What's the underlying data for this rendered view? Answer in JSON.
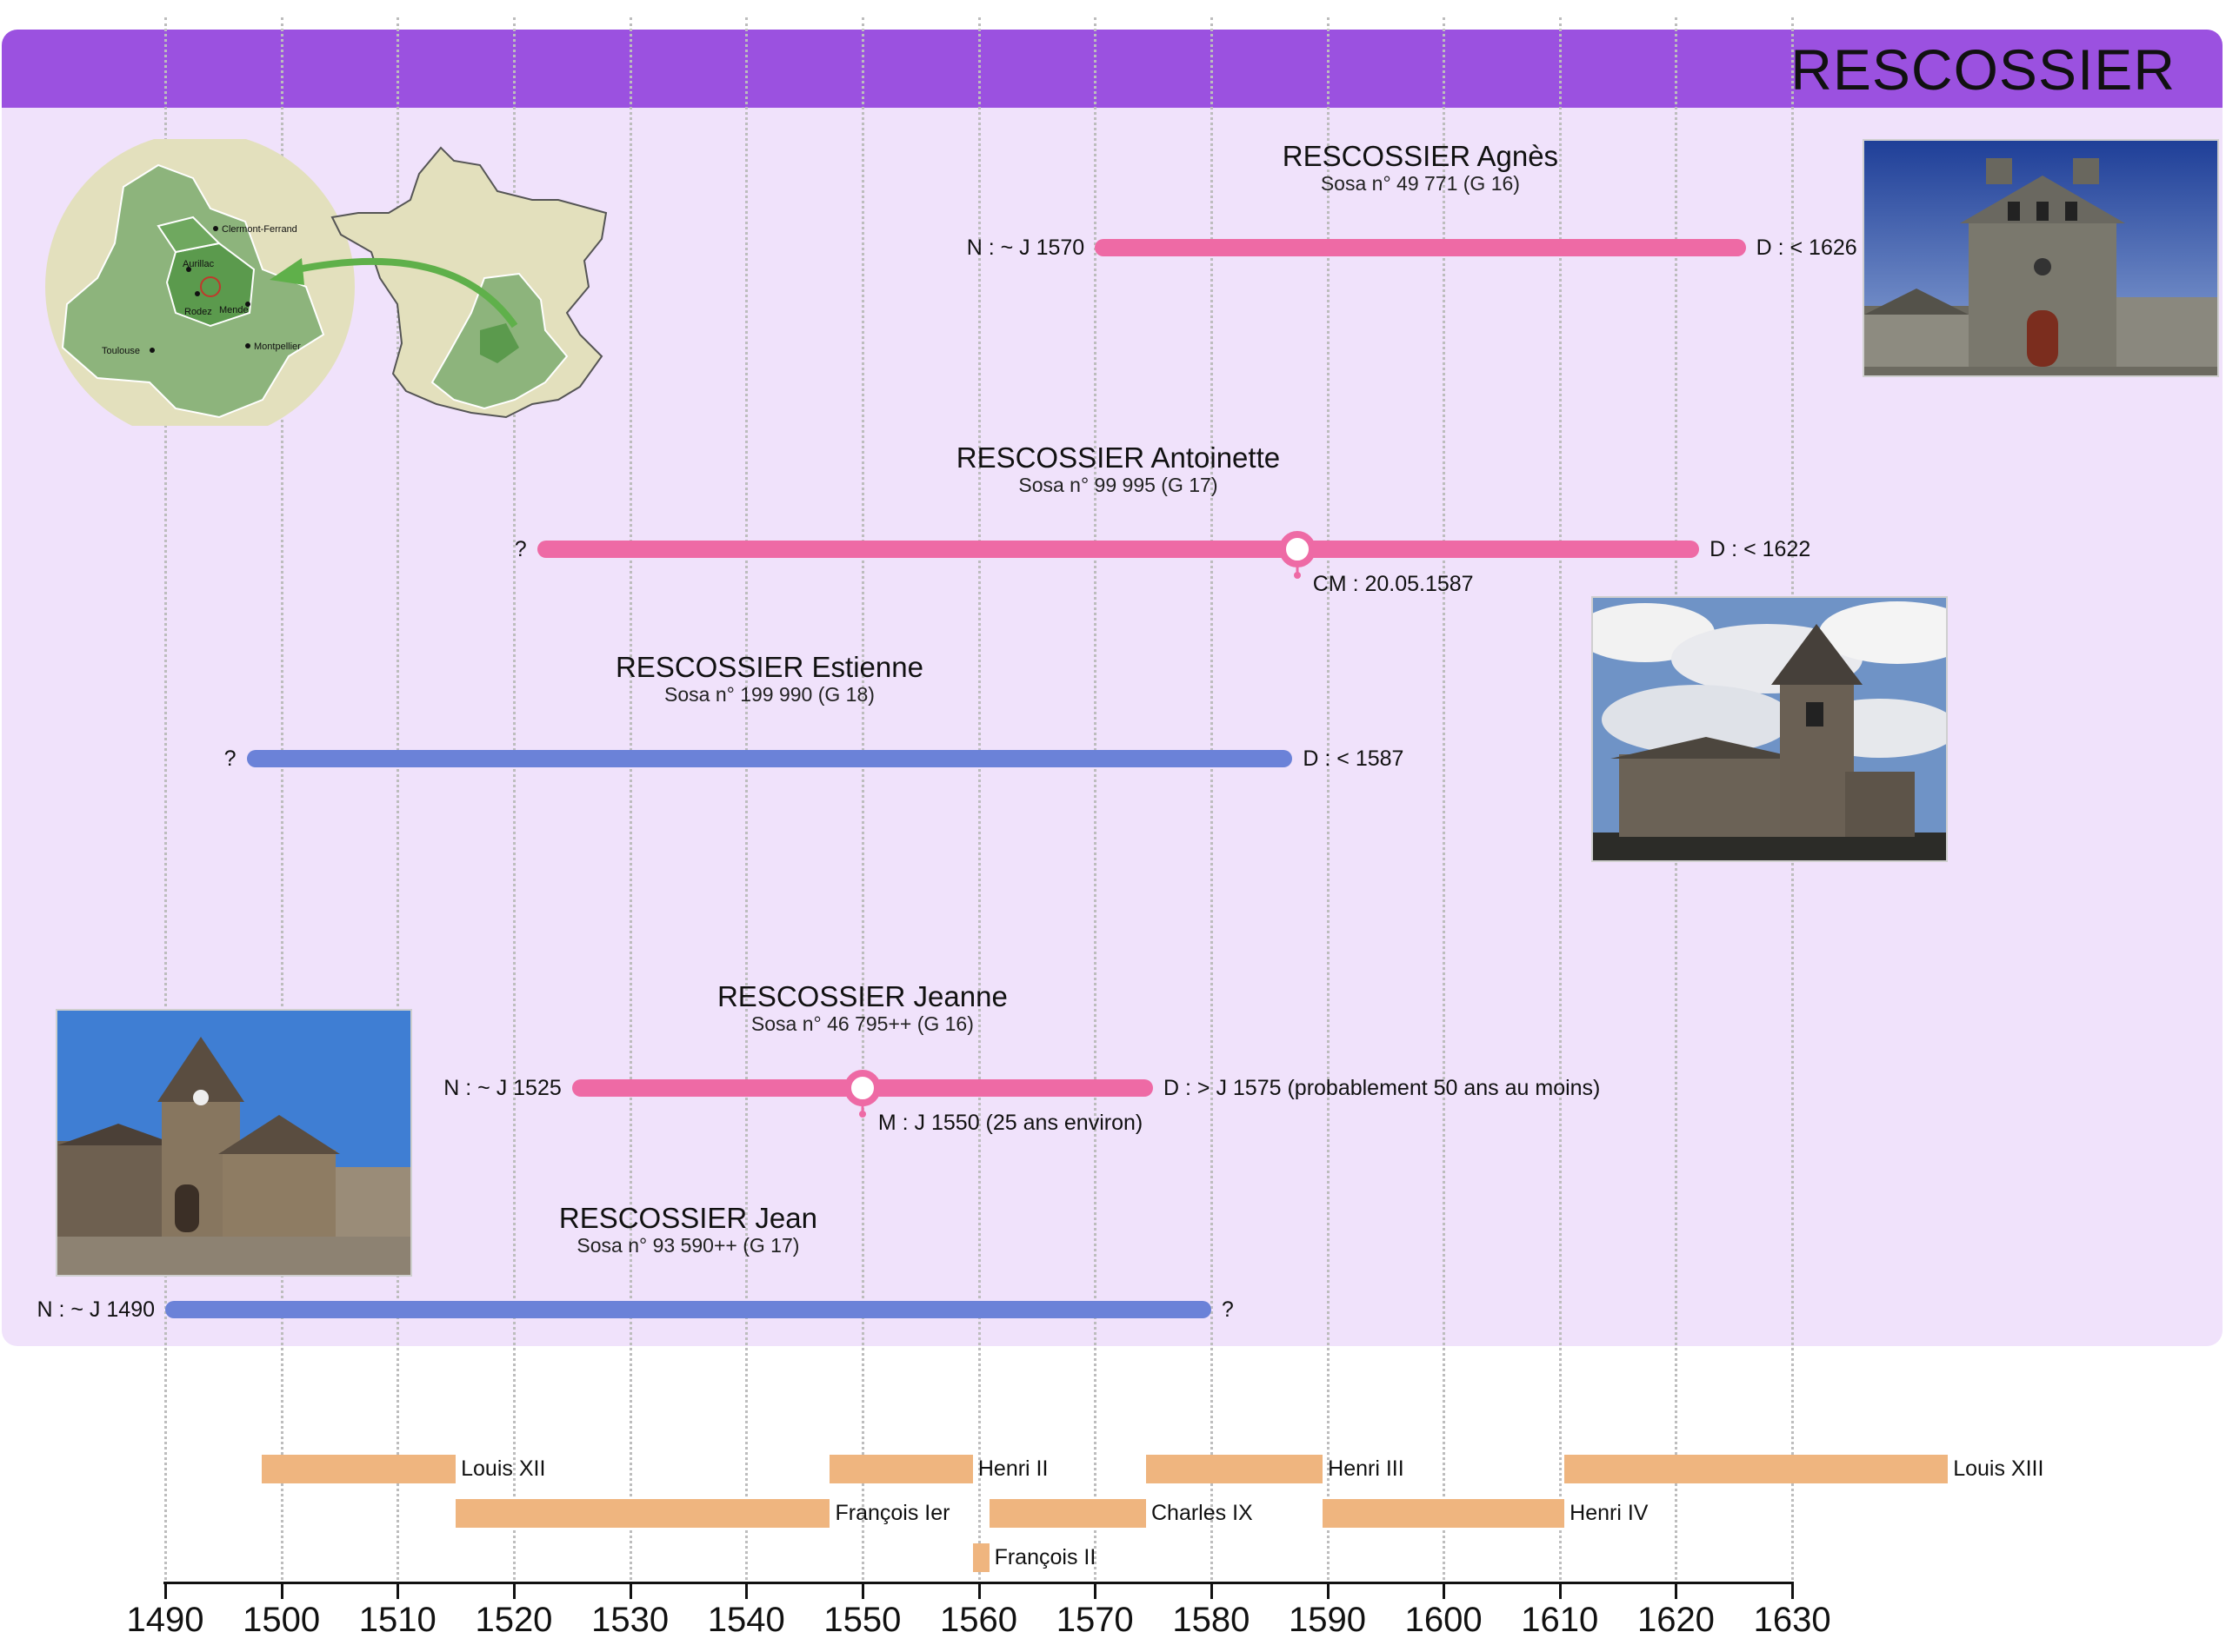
{
  "header": {
    "title": "RESCOSSIER"
  },
  "persons": [
    {
      "id": "agnes",
      "name": "RESCOSSIER Agnès",
      "sosa": "Sosa n° 49 771 (G 16)",
      "sex": "female",
      "birth_label": "N : ~ J 1570",
      "death_label": "D : < 1626",
      "start_year": 1570,
      "end_year": 1626
    },
    {
      "id": "antoinette",
      "name": "RESCOSSIER Antoinette",
      "sosa": "Sosa n° 99 995 (G 17)",
      "sex": "female",
      "birth_label": "?",
      "death_label": "D : < 1622",
      "start_year": 1522,
      "end_year": 1622,
      "event": {
        "label": "CM : 20.05.1587",
        "year": 1587.4
      }
    },
    {
      "id": "estienne",
      "name": "RESCOSSIER Estienne",
      "sosa": "Sosa n° 199 990 (G 18)",
      "sex": "male",
      "birth_label": "?",
      "death_label": "D : < 1587",
      "start_year": 1497,
      "end_year": 1587
    },
    {
      "id": "jeanne",
      "name": "RESCOSSIER Jeanne",
      "sosa": "Sosa n° 46 795++ (G 16)",
      "sex": "female",
      "birth_label": "N : ~ J 1525",
      "death_label": "D : > J 1575 (probablement 50 ans au moins)",
      "start_year": 1525,
      "end_year": 1575,
      "event": {
        "label": "M : J 1550 (25 ans environ)",
        "year": 1550
      }
    },
    {
      "id": "jean",
      "name": "RESCOSSIER Jean",
      "sosa": "Sosa n° 93 590++ (G 17)",
      "sex": "male",
      "birth_label": "N : ~ J 1490",
      "death_label": "?",
      "start_year": 1490,
      "end_year": 1580
    }
  ],
  "kings": [
    {
      "name": "Louis XII",
      "start": 1498.3,
      "end": 1515,
      "row": 0
    },
    {
      "name": "François Ier",
      "start": 1515,
      "end": 1547.2,
      "row": 1
    },
    {
      "name": "Henri II",
      "start": 1547.2,
      "end": 1559.5,
      "row": 0
    },
    {
      "name": "François II",
      "start": 1559.5,
      "end": 1560.9,
      "row": 2
    },
    {
      "name": "Charles IX",
      "start": 1560.9,
      "end": 1574.4,
      "row": 1
    },
    {
      "name": "Henri III",
      "start": 1574.4,
      "end": 1589.6,
      "row": 0
    },
    {
      "name": "Henri IV",
      "start": 1589.6,
      "end": 1610.4,
      "row": 1
    },
    {
      "name": "Louis XIII",
      "start": 1610.4,
      "end": 1643.4,
      "row": 0
    }
  ],
  "axis": {
    "min": 1490,
    "max": 1630,
    "step": 10,
    "ticks": [
      "1490",
      "1500",
      "1510",
      "1520",
      "1530",
      "1540",
      "1550",
      "1560",
      "1570",
      "1580",
      "1590",
      "1600",
      "1610",
      "1620",
      "1630"
    ]
  },
  "map": {
    "cities": [
      "Clermont-Ferrand",
      "Aurillac",
      "Rodez",
      "Mende",
      "Toulouse",
      "Montpellier"
    ]
  },
  "colors": {
    "female": "#ee6aa5",
    "male": "#6b82d8",
    "king": "#efb57f",
    "header": "#9b51e0",
    "panel": "#f0e2fb"
  }
}
